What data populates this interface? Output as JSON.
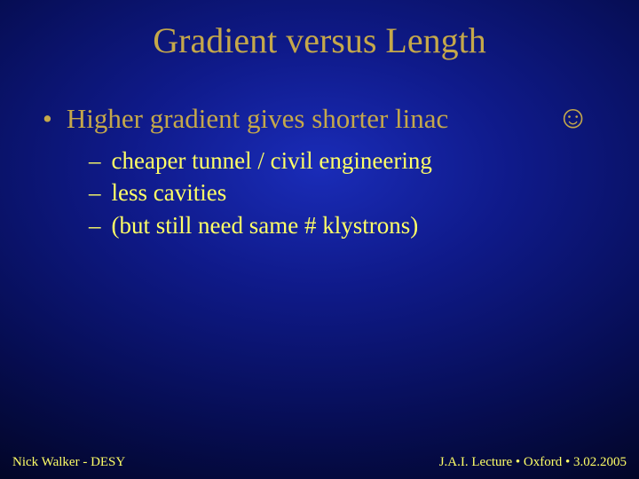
{
  "title": "Gradient versus Length",
  "main_bullet": "Higher gradient gives shorter linac",
  "smiley_icon": "☺",
  "sub_items": {
    "0": "cheaper tunnel / civil engineering",
    "1": "less cavities",
    "2": "(but still need same # klystrons)"
  },
  "footer": {
    "left": "Nick Walker - DESY",
    "right": "J.A.I. Lecture • Oxford • 3.02.2005"
  },
  "colors": {
    "title_color": "#c5a84a",
    "bullet_color": "#c5a84a",
    "sub_color": "#ffff66",
    "footer_color": "#ffff66",
    "bg_center": "#1a2cb8",
    "bg_edge": "#000000"
  },
  "fonts": {
    "family": "Times New Roman",
    "title_size_pt": 30,
    "main_bullet_size_pt": 23,
    "sub_size_pt": 20,
    "footer_size_pt": 11
  }
}
